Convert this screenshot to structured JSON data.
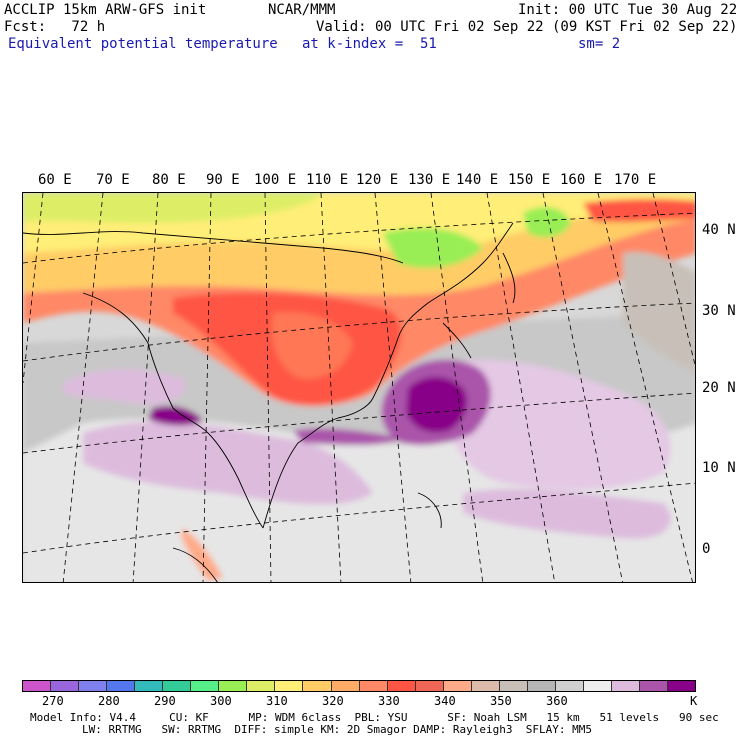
{
  "header": {
    "line1_left": "ACCLIP 15km ARW-GFS init",
    "line1_mid": "NCAR/MMM",
    "line1_right": "Init: 00 UTC Tue 30 Aug 22",
    "fcst": "Fcst:   72 h",
    "valid": "Valid: 00 UTC Fri 02 Sep 22 (09 KST Fri 02 Sep 22)",
    "field": "Equivalent potential temperature",
    "kindex": "at k-index =  51",
    "smooth": "sm= 2"
  },
  "longitude_labels": [
    "60 E",
    "70 E",
    "80 E",
    "90 E",
    "100 E",
    "110 E",
    "120 E",
    "130 E",
    "140 E",
    "150 E",
    "160 E",
    "170 E"
  ],
  "latitude_labels": [
    "40 N",
    "30 N",
    "20 N",
    "10 N",
    "0"
  ],
  "colorbar": {
    "colors": [
      "#cc55cc",
      "#9966dd",
      "#7f7fee",
      "#5577ee",
      "#33bbbb",
      "#33cc99",
      "#55ee88",
      "#99ee55",
      "#ddee66",
      "#ffee77",
      "#ffcc66",
      "#ffaa66",
      "#ff8866",
      "#ff5544",
      "#ee6655",
      "#ffaa88",
      "#ddbbaa",
      "#c8c0b8",
      "#b5b5b5",
      "#d0d0d0",
      "#eeeeee",
      "#ddbbdd",
      "#aa55aa",
      "#880088"
    ],
    "labels": [
      "270",
      "280",
      "290",
      "300",
      "310",
      "320",
      "330",
      "340",
      "350",
      "360",
      "K"
    ],
    "unit": "K"
  },
  "footer": {
    "line1": "Model Info: V4.4     CU: KF      MP: WDM 6class  PBL: YSU      SF: Noah LSM   15 km   51 levels   90 sec",
    "line2": "LW: RRTMG   SW: RRTMG  DIFF: simple KM: 2D Smagor DAMP: Rayleigh3  SFLAY: MM5"
  }
}
